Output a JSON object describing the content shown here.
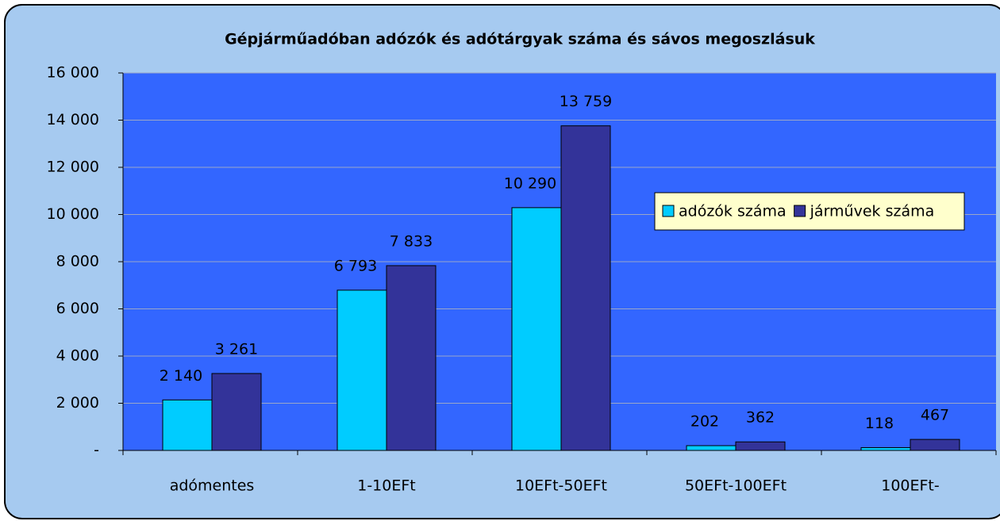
{
  "chart_data": {
    "type": "bar",
    "title": "Gépjárműadóban adózók és adótárgyak száma és sávos megoszlásuk",
    "categories": [
      "adómentes",
      "1-10EFt",
      "10EFt-50EFt",
      "50EFt-100EFt",
      "100EFt-"
    ],
    "series": [
      {
        "name": "adózók száma",
        "color": "#00ccff",
        "values": [
          2140,
          6793,
          10290,
          202,
          118
        ],
        "value_labels": [
          "2 140",
          "6 793",
          "10 290",
          "202",
          "118"
        ]
      },
      {
        "name": "járművek száma",
        "color": "#333399",
        "values": [
          3261,
          7833,
          13759,
          362,
          467
        ],
        "value_labels": [
          "3 261",
          "7 833",
          "13 759",
          "362",
          "467"
        ]
      }
    ],
    "ylim": [
      0,
      16000
    ],
    "yticks": [
      {
        "value": 0,
        "label": "-"
      },
      {
        "value": 2000,
        "label": "2 000"
      },
      {
        "value": 4000,
        "label": "4 000"
      },
      {
        "value": 6000,
        "label": "6 000"
      },
      {
        "value": 8000,
        "label": "8 000"
      },
      {
        "value": 10000,
        "label": "10 000"
      },
      {
        "value": 12000,
        "label": "12 000"
      },
      {
        "value": 14000,
        "label": "14 000"
      },
      {
        "value": 16000,
        "label": "16 000"
      }
    ],
    "grid": true,
    "legend": "right"
  }
}
